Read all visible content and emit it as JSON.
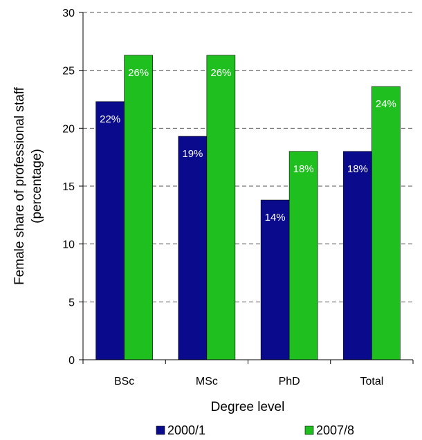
{
  "chart_data": {
    "type": "bar",
    "categories": [
      "BSc",
      "MSc",
      "PhD",
      "Total"
    ],
    "series": [
      {
        "name": "2000/1",
        "values": [
          22.3,
          19.3,
          13.8,
          18.0
        ],
        "labels": [
          "22%",
          "19%",
          "14%",
          "18%"
        ],
        "color": "#0a0a8c"
      },
      {
        "name": "2007/8",
        "values": [
          26.3,
          26.3,
          18.0,
          23.6
        ],
        "labels": [
          "26%",
          "26%",
          "18%",
          "24%"
        ],
        "color": "#1fbf1f"
      }
    ],
    "yticks": [
      "0",
      "5",
      "10",
      "15",
      "20",
      "25",
      "30"
    ],
    "xlabel": "Degree level",
    "ylabel_line1": "Female share of professional staff",
    "ylabel_line2": "(percentage)",
    "ylim": [
      0,
      30
    ],
    "grid": "horizontal dashed",
    "legend_position": "bottom"
  }
}
